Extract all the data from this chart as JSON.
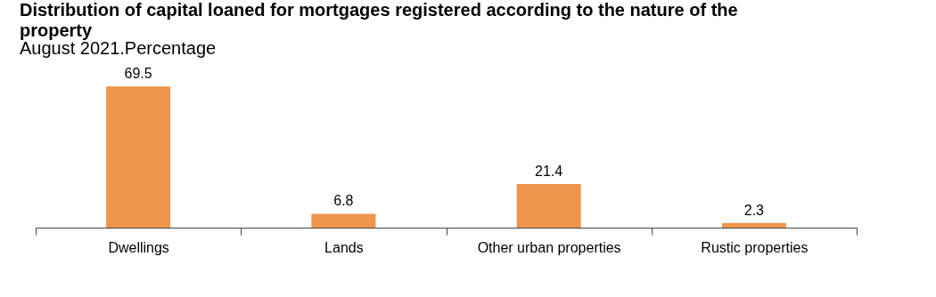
{
  "chart_data": {
    "type": "bar",
    "title": "Distribution of capital loaned for mortgages registered according to the nature of the property",
    "subtitle": "August 2021.Percentage",
    "categories": [
      "Dwellings",
      "Lands",
      "Other urban properties",
      "Rustic properties"
    ],
    "values": [
      69.5,
      6.8,
      21.4,
      2.3
    ],
    "color": "#ee954b",
    "data_labels": true
  }
}
